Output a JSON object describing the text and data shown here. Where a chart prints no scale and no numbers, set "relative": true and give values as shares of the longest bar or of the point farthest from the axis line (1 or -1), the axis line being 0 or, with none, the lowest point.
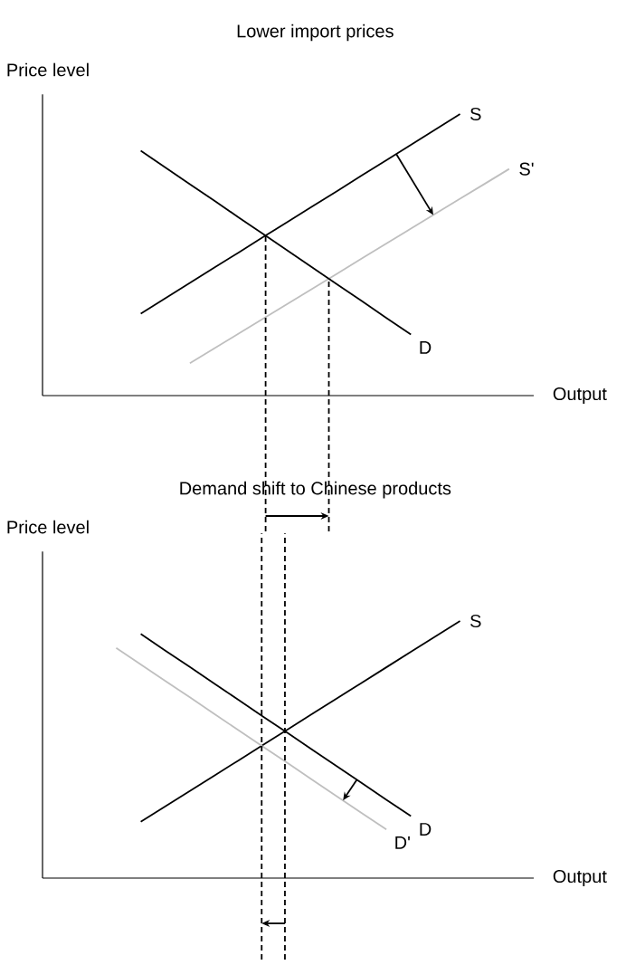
{
  "chart_data": [
    {
      "type": "line",
      "title": "Lower import prices",
      "ylabel": "Price level",
      "xlabel": "Output",
      "relative": true,
      "tick_labels": false,
      "line_style": "solid",
      "categories": [
        null,
        null,
        null,
        null,
        null,
        null,
        null,
        null,
        null,
        null,
        null,
        null,
        null,
        null,
        null,
        null,
        null,
        null,
        null,
        null,
        null
      ],
      "series": [
        {
          "name": "S",
          "color": "#000000",
          "values": [
            null,
            null,
            null,
            null,
            0.291,
            0.346,
            0.4,
            0.455,
            0.509,
            0.564,
            0.618,
            0.673,
            0.727,
            0.782,
            0.836,
            0.891,
            0.945,
            1.0,
            null,
            null,
            null
          ]
        },
        {
          "name": "S'",
          "color": "#bfbfbf",
          "values": [
            null,
            null,
            null,
            null,
            null,
            null,
            0.115,
            0.168,
            0.221,
            0.274,
            0.327,
            0.38,
            0.433,
            0.487,
            0.54,
            0.593,
            0.646,
            0.699,
            0.752,
            0.805,
            null
          ]
        },
        {
          "name": "D",
          "color": "#000000",
          "values": [
            null,
            null,
            null,
            null,
            0.87,
            0.81,
            0.751,
            0.692,
            0.632,
            0.573,
            0.514,
            0.454,
            0.395,
            0.336,
            0.276,
            0.217,
            null,
            null,
            null,
            null,
            null
          ]
        }
      ]
    },
    {
      "type": "line",
      "title": "Demand shift to Chinese products",
      "ylabel": "Price level",
      "xlabel": "Output",
      "relative": true,
      "tick_labels": false,
      "line_style": "solid",
      "categories": [
        null,
        null,
        null,
        null,
        null,
        null,
        null,
        null,
        null,
        null,
        null,
        null,
        null,
        null,
        null,
        null,
        null,
        null,
        null,
        null,
        null
      ],
      "series": [
        {
          "name": "S",
          "color": "#000000",
          "values": [
            null,
            null,
            null,
            null,
            0.219,
            0.279,
            0.339,
            0.399,
            0.459,
            0.519,
            0.579,
            0.64,
            0.7,
            0.76,
            0.82,
            0.88,
            0.94,
            1.0,
            null,
            null,
            null
          ]
        },
        {
          "name": "D",
          "color": "#000000",
          "values": [
            null,
            null,
            null,
            null,
            0.95,
            0.885,
            0.821,
            0.756,
            0.692,
            0.627,
            0.563,
            0.498,
            0.434,
            0.37,
            0.305,
            0.241,
            null,
            null,
            null,
            null,
            null
          ]
        },
        {
          "name": "D'",
          "color": "#bfbfbf",
          "values": [
            null,
            null,
            null,
            0.895,
            0.831,
            0.767,
            0.703,
            0.638,
            0.574,
            0.51,
            0.446,
            0.381,
            0.317,
            0.253,
            0.189,
            null,
            null,
            null,
            null,
            null,
            null
          ]
        }
      ]
    }
  ]
}
